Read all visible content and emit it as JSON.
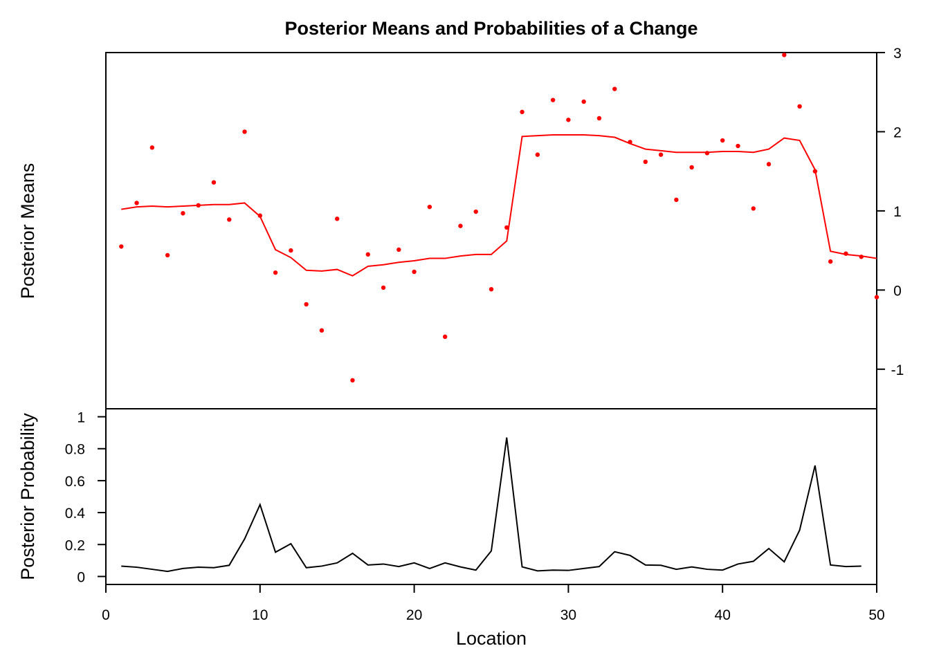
{
  "chart_data": {
    "type": "line",
    "title": "Posterior Means and Probabilities of a Change",
    "xlabel": "Location",
    "xlim": [
      0,
      50
    ],
    "x_ticks": [
      0,
      10,
      20,
      30,
      40,
      50
    ],
    "panels": [
      {
        "name": "means",
        "ylabel": "Posterior Means",
        "axis_side": "right",
        "ylim": [
          -1.5,
          3.0
        ],
        "y_ticks": [
          -1,
          0,
          1,
          2,
          3
        ],
        "grid": false,
        "colors": {
          "points": "#ff0000",
          "line": "#ff0000"
        },
        "observations": {
          "x": [
            1,
            2,
            3,
            4,
            5,
            6,
            7,
            8,
            9,
            10,
            11,
            12,
            13,
            14,
            15,
            16,
            17,
            18,
            19,
            20,
            21,
            22,
            23,
            24,
            25,
            26,
            27,
            28,
            29,
            30,
            31,
            32,
            33,
            34,
            35,
            36,
            37,
            38,
            39,
            40,
            41,
            42,
            43,
            44,
            45,
            46,
            47,
            48,
            49,
            50
          ],
          "y": [
            0.55,
            1.1,
            1.8,
            0.44,
            0.97,
            1.07,
            1.36,
            0.89,
            2.0,
            0.94,
            0.22,
            0.5,
            -0.18,
            -0.51,
            0.9,
            -1.14,
            0.45,
            0.03,
            0.51,
            0.23,
            1.05,
            -0.59,
            0.81,
            0.99,
            0.01,
            0.79,
            2.25,
            1.71,
            2.4,
            2.15,
            2.38,
            2.17,
            2.54,
            1.87,
            1.62,
            1.71,
            1.14,
            1.55,
            1.73,
            1.89,
            1.82,
            1.03,
            1.59,
            2.97,
            2.32,
            1.5,
            0.36,
            0.46,
            0.42,
            -0.09
          ]
        },
        "posterior_mean": {
          "x": [
            1,
            2,
            3,
            4,
            5,
            6,
            7,
            8,
            9,
            10,
            11,
            12,
            13,
            14,
            15,
            16,
            17,
            18,
            19,
            20,
            21,
            22,
            23,
            24,
            25,
            26,
            27,
            28,
            29,
            30,
            31,
            32,
            33,
            34,
            35,
            36,
            37,
            38,
            39,
            40,
            41,
            42,
            43,
            44,
            45,
            46,
            47,
            48,
            49,
            50
          ],
          "y": [
            1.02,
            1.05,
            1.06,
            1.05,
            1.06,
            1.07,
            1.08,
            1.08,
            1.1,
            0.93,
            0.51,
            0.41,
            0.25,
            0.24,
            0.26,
            0.18,
            0.3,
            0.32,
            0.35,
            0.37,
            0.4,
            0.4,
            0.43,
            0.45,
            0.45,
            0.62,
            1.94,
            1.95,
            1.96,
            1.96,
            1.96,
            1.95,
            1.93,
            1.85,
            1.78,
            1.76,
            1.74,
            1.74,
            1.74,
            1.75,
            1.75,
            1.74,
            1.78,
            1.92,
            1.89,
            1.52,
            0.49,
            0.45,
            0.43,
            0.4
          ]
        }
      },
      {
        "name": "probability",
        "ylabel": "Posterior Probability",
        "axis_side": "left",
        "ylim": [
          -0.05,
          1.05
        ],
        "y_ticks": [
          0,
          0.2,
          0.4,
          0.6,
          0.8,
          1
        ],
        "grid": false,
        "colors": {
          "line": "#000000"
        },
        "series": [
          {
            "x": [
              1,
              2,
              3,
              4,
              5,
              6,
              7,
              8,
              9,
              10,
              11,
              12,
              13,
              14,
              15,
              16,
              17,
              18,
              19,
              20,
              21,
              22,
              23,
              24,
              25,
              26,
              27,
              28,
              29,
              30,
              31,
              32,
              33,
              34,
              35,
              36,
              37,
              38,
              39,
              40,
              41,
              42,
              43,
              44,
              45,
              46,
              47,
              48,
              49
            ],
            "values": [
              0.065,
              0.058,
              0.045,
              0.032,
              0.05,
              0.058,
              0.055,
              0.07,
              0.235,
              0.45,
              0.152,
              0.205,
              0.055,
              0.065,
              0.085,
              0.145,
              0.072,
              0.078,
              0.062,
              0.085,
              0.05,
              0.085,
              0.06,
              0.04,
              0.16,
              0.87,
              0.06,
              0.035,
              0.04,
              0.038,
              0.05,
              0.062,
              0.155,
              0.132,
              0.072,
              0.07,
              0.045,
              0.06,
              0.045,
              0.04,
              0.078,
              0.095,
              0.175,
              0.092,
              0.29,
              0.695,
              0.072,
              0.062,
              0.065
            ]
          }
        ]
      }
    ]
  }
}
